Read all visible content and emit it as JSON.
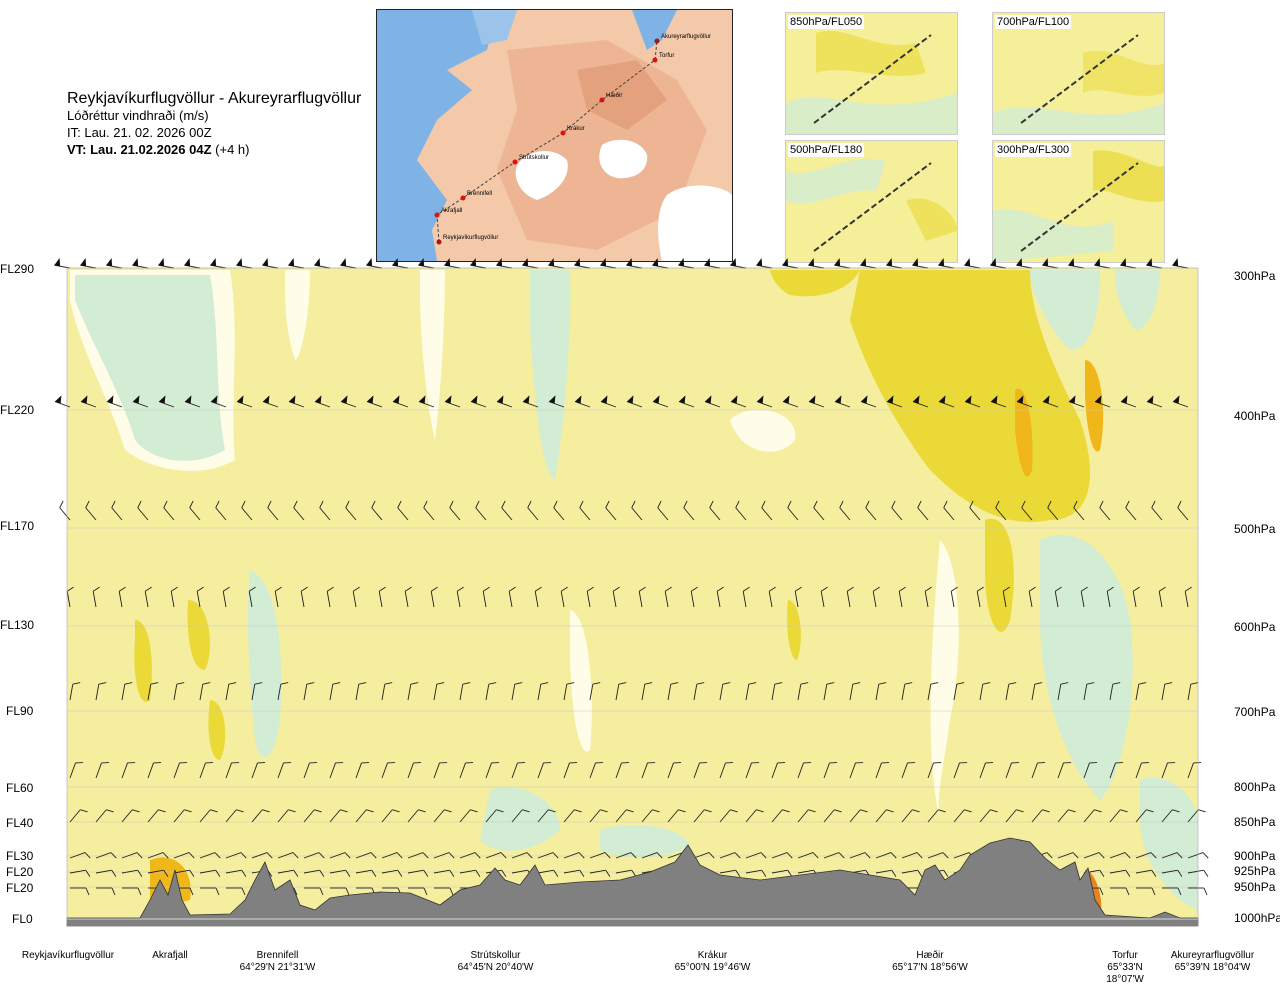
{
  "header": {
    "route": "Reykjavíkurflugvöllur - Akureyrarflugvöllur",
    "parameter": "Lóðréttur vindhraði (m/s)",
    "it": "IT: Lau. 21. 02. 2026 00Z",
    "vt_bold": "VT: Lau. 21.02.2026 04Z",
    "vt_offset": " (+4 h)"
  },
  "route_map": {
    "points": [
      {
        "name": "Akureyrarflugvöllur"
      },
      {
        "name": "Torfur"
      },
      {
        "name": "Hæðir"
      },
      {
        "name": "Krákur"
      },
      {
        "name": "Strútskollur"
      },
      {
        "name": "Brennifell"
      },
      {
        "name": "Akrafjall"
      },
      {
        "name": "Reykjavíkurflugvöllur"
      }
    ]
  },
  "level_maps": [
    {
      "label": "850hPa/FL050"
    },
    {
      "label": "700hPa/FL100"
    },
    {
      "label": "500hPa/FL180"
    },
    {
      "label": "300hPa/FL300"
    }
  ],
  "chart_data": {
    "type": "heatmap",
    "title": "Reykjavíkurflugvöllur - Akureyrarflugvöllur",
    "variable": "Lóðréttur vindhraði (m/s)",
    "left_axis_levels": [
      "FL290",
      "FL220",
      "FL170",
      "FL130",
      "FL90",
      "FL60",
      "FL40",
      "FL30",
      "FL20",
      "FL20",
      "FL0"
    ],
    "right_axis_levels": [
      "300hPa",
      "400hPa",
      "500hPa",
      "600hPa",
      "700hPa",
      "800hPa",
      "850hPa",
      "900hPa",
      "925hPa",
      "950hPa",
      "1000hPa"
    ],
    "locations": [
      {
        "name": "Reykjavíkurflugvöllur",
        "coord": ""
      },
      {
        "name": "Akrafjall",
        "coord": ""
      },
      {
        "name": "Brennifell",
        "coord": "64°29'N 21°31'W"
      },
      {
        "name": "Strútskollur",
        "coord": "64°45'N 20°40'W"
      },
      {
        "name": "Krákur",
        "coord": "65°00'N 19°46'W"
      },
      {
        "name": "Hæðir",
        "coord": "65°17'N 18°56'W"
      },
      {
        "name": "Torfur",
        "coord": "65°33'N 18°07'W"
      },
      {
        "name": "Akureyrarflugvöllur",
        "coord": "65°39'N 18°04'W"
      }
    ],
    "colors": {
      "weak_up": "#f5ee9e",
      "moderate_up": "#ead936",
      "strong_up": "#f0b71a",
      "very_strong_up": "#e8831f",
      "weak_down": "#fffde8",
      "moderate_down": "#d3ecd4",
      "strong_down": "#a9d7b4",
      "terrain": "#808080"
    }
  }
}
